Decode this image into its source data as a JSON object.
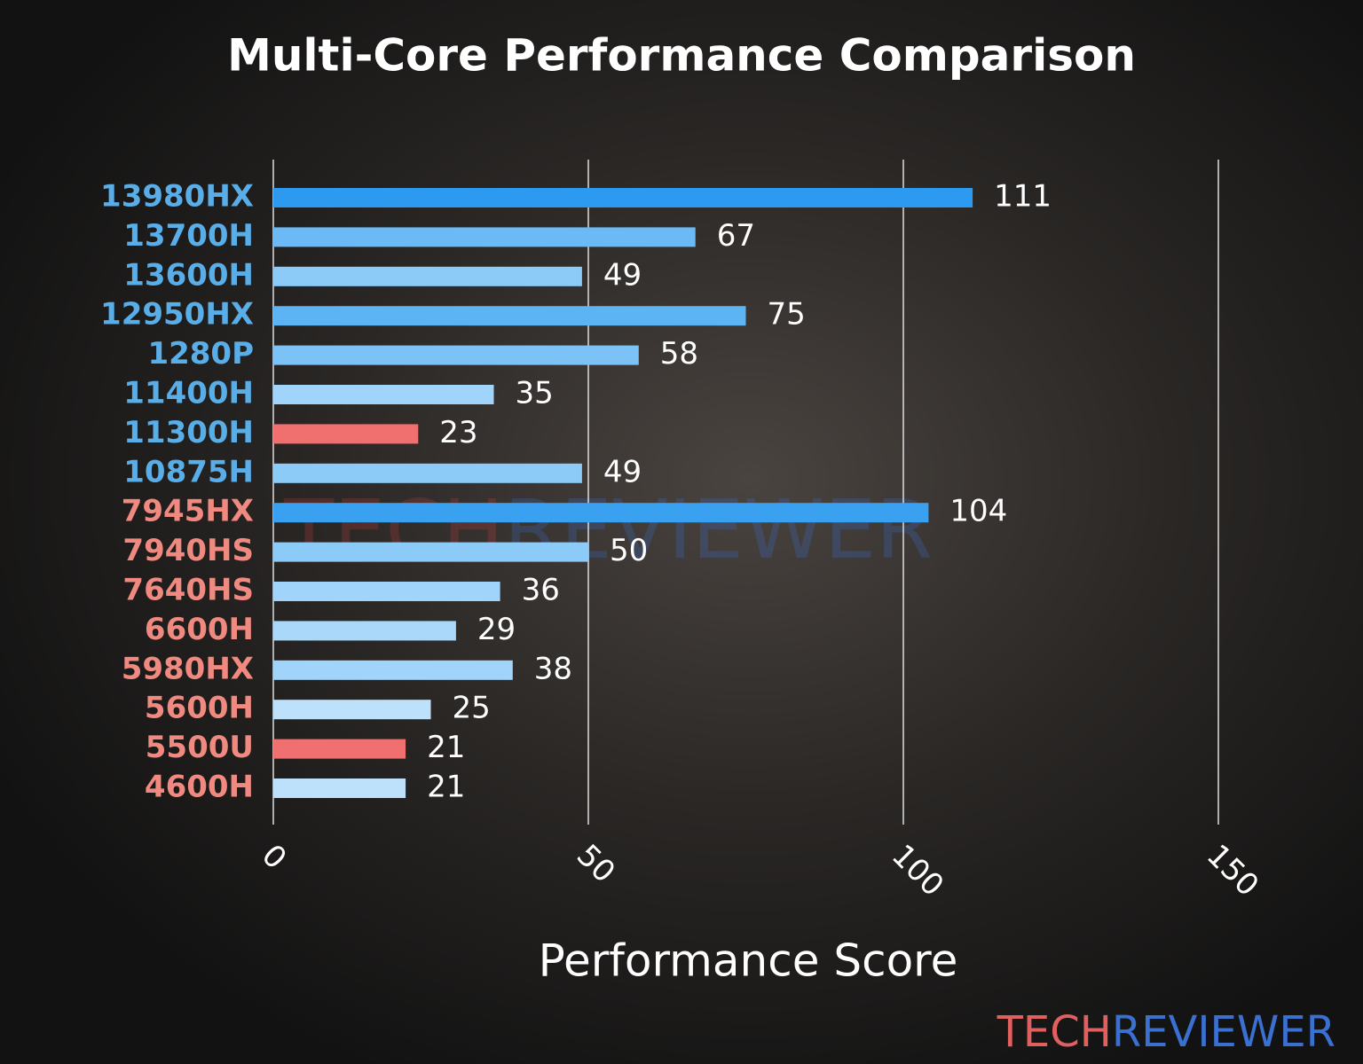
{
  "chart_data": {
    "type": "barh",
    "title": "Multi-Core Performance Comparison",
    "xlabel": "Performance Score",
    "categories": [
      "13980HX",
      "13700H",
      "13600H",
      "12950HX",
      "1280P",
      "11400H",
      "11300H",
      "10875H",
      "7945HX",
      "7940HS",
      "7640HS",
      "6600H",
      "5980HX",
      "5600H",
      "5500U",
      "4600H"
    ],
    "values": [
      111,
      67,
      49,
      75,
      58,
      35,
      23,
      49,
      104,
      50,
      36,
      29,
      38,
      25,
      21,
      21
    ],
    "colors": [
      "#2b9af0",
      "#6cbaf5",
      "#8ccbf8",
      "#5db4f5",
      "#7cc2f7",
      "#a0d4fa",
      "#f07070",
      "#8ccbf8",
      "#3aa0f0",
      "#8ccbf8",
      "#a0d4fa",
      "#aad8fa",
      "#a0d4fa",
      "#bde0fb",
      "#f07070",
      "#bde0fb"
    ],
    "label_colors": [
      "#5aaee8",
      "#5aaee8",
      "#5aaee8",
      "#5aaee8",
      "#5aaee8",
      "#5aaee8",
      "#5aaee8",
      "#5aaee8",
      "#f08a80",
      "#f08a80",
      "#f08a80",
      "#f08a80",
      "#f08a80",
      "#f08a80",
      "#f08a80",
      "#f08a80"
    ],
    "xlim": [
      0,
      150
    ],
    "xticks": [
      0,
      50,
      100,
      150
    ],
    "grid": true
  },
  "brand": [
    "TECH",
    "REVIEWER"
  ]
}
